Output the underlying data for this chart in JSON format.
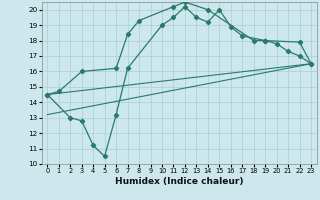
{
  "xlabel": "Humidex (Indice chaleur)",
  "ylabel": "",
  "xlim": [
    -0.5,
    23.5
  ],
  "ylim": [
    10,
    20.5
  ],
  "xticks": [
    0,
    1,
    2,
    3,
    4,
    5,
    6,
    7,
    8,
    9,
    10,
    11,
    12,
    13,
    14,
    15,
    16,
    17,
    18,
    19,
    20,
    21,
    22,
    23
  ],
  "yticks": [
    10,
    11,
    12,
    13,
    14,
    15,
    16,
    17,
    18,
    19,
    20
  ],
  "background_color": "#cce8ec",
  "grid_color": "#aacdd4",
  "line_color": "#2a7a6a",
  "line1_x": [
    0,
    2,
    3,
    4,
    5,
    6,
    7,
    10,
    11,
    12,
    13,
    14,
    15,
    16,
    17,
    19,
    20,
    21,
    22,
    23
  ],
  "line1_y": [
    14.5,
    13.0,
    12.8,
    11.2,
    10.5,
    13.2,
    16.2,
    19.0,
    19.5,
    20.2,
    19.5,
    19.2,
    20.0,
    18.9,
    18.3,
    18.0,
    17.8,
    17.3,
    17.0,
    16.5
  ],
  "line2_x": [
    0,
    1,
    3,
    6,
    7,
    8,
    11,
    12,
    14,
    18,
    19,
    22,
    23
  ],
  "line2_y": [
    14.5,
    14.7,
    16.0,
    16.2,
    18.4,
    19.3,
    20.2,
    20.5,
    20.0,
    18.0,
    18.0,
    17.9,
    16.5
  ],
  "line3_x": [
    0,
    23
  ],
  "line3_y": [
    13.2,
    16.5
  ],
  "line4_x": [
    0,
    23
  ],
  "line4_y": [
    14.5,
    16.5
  ]
}
